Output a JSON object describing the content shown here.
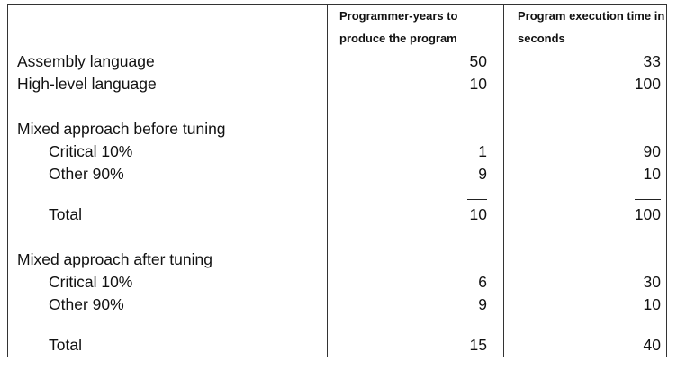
{
  "headers": {
    "label": "",
    "col1": "Programmer-years to produce the program",
    "col2": "Program execution time in seconds"
  },
  "rows": {
    "assembly": {
      "label": "Assembly language",
      "years": "50",
      "time": "33"
    },
    "highlevel": {
      "label": "High-level language",
      "years": "10",
      "time": "100"
    },
    "before": {
      "heading": "Mixed approach before tuning",
      "critical": {
        "label": "Critical 10%",
        "years": "1",
        "time": "90"
      },
      "other": {
        "label": "Other 90%",
        "years": "9",
        "time": "10"
      },
      "total": {
        "label": "Total",
        "years": "10",
        "time": "100"
      }
    },
    "after": {
      "heading": "Mixed approach after tuning",
      "critical": {
        "label": "Critical 10%",
        "years": "6",
        "time": "30"
      },
      "other": {
        "label": "Other 90%",
        "years": "9",
        "time": "10"
      },
      "total": {
        "label": "Total",
        "years": "15",
        "time": "40"
      }
    }
  }
}
